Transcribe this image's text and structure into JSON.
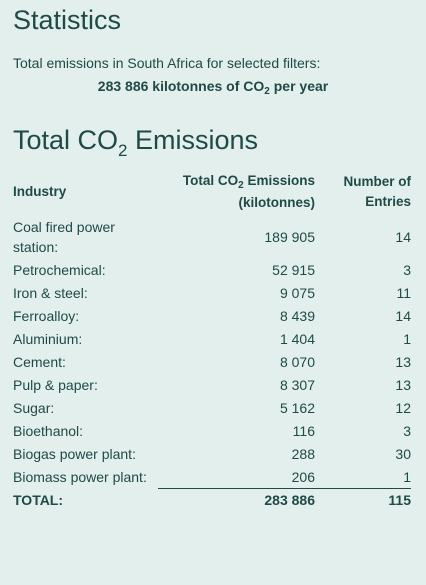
{
  "statistics": {
    "title": "Statistics",
    "summary_line": "Total emissions in South Africa for selected filters:",
    "summary_value_prefix": "283 886 kilotonnes of CO",
    "summary_value_sub": "2",
    "summary_value_suffix": " per year"
  },
  "total_emissions": {
    "title_prefix": "Total CO",
    "title_sub": "2",
    "title_suffix": " Emissions",
    "columns": {
      "industry": "Industry",
      "emissions_line1_prefix": "Total CO",
      "emissions_line1_sub": "2",
      "emissions_line1_suffix": " Emissions",
      "emissions_line2": "(kilotonnes)",
      "entries_line1": "Number of",
      "entries_line2": "Entries"
    },
    "rows": [
      {
        "industry": "Coal fired power station:",
        "emissions": "189 905",
        "entries": "14"
      },
      {
        "industry": "Petrochemical:",
        "emissions": "52 915",
        "entries": "3"
      },
      {
        "industry": "Iron & steel:",
        "emissions": "9 075",
        "entries": "11"
      },
      {
        "industry": "Ferroalloy:",
        "emissions": "8 439",
        "entries": "14"
      },
      {
        "industry": "Aluminium:",
        "emissions": "1 404",
        "entries": "1"
      },
      {
        "industry": "Cement:",
        "emissions": "8 070",
        "entries": "13"
      },
      {
        "industry": "Pulp & paper:",
        "emissions": "8 307",
        "entries": "13"
      },
      {
        "industry": "Sugar:",
        "emissions": "5 162",
        "entries": "12"
      },
      {
        "industry": "Bioethanol:",
        "emissions": "116",
        "entries": "3"
      },
      {
        "industry": "Biogas power plant:",
        "emissions": "288",
        "entries": "30"
      },
      {
        "industry": "Biomass power plant:",
        "emissions": "206",
        "entries": "1"
      }
    ],
    "total": {
      "label": "TOTAL:",
      "emissions": "283 886",
      "entries": "115"
    }
  }
}
